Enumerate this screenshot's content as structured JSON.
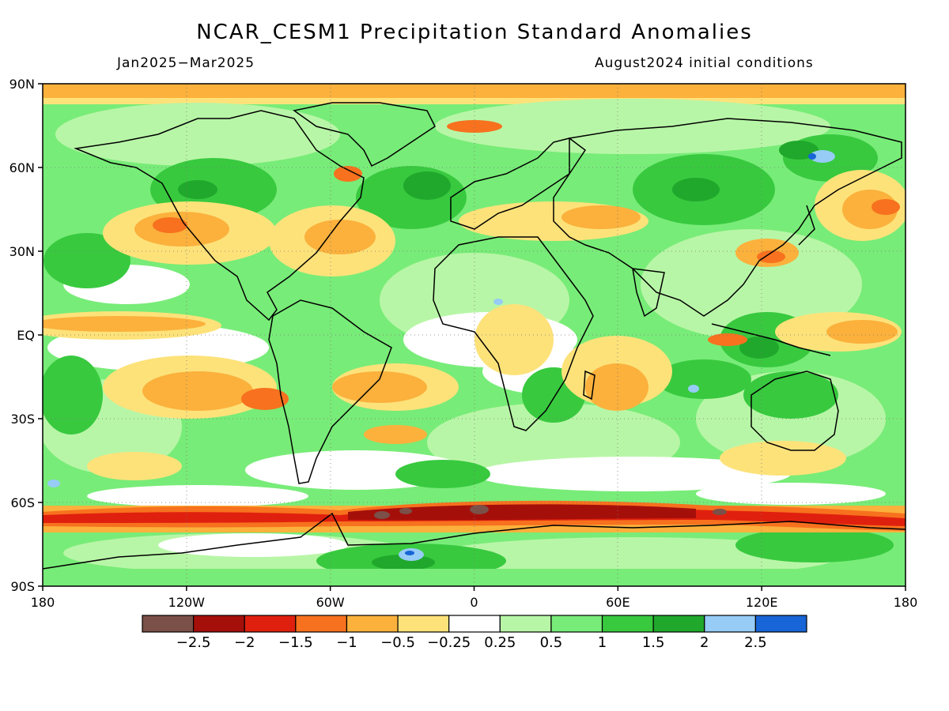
{
  "title": "NCAR_CESM1 Precipitation Standard Anomalies",
  "subtitle_left": "Jan2025−Mar2025",
  "subtitle_right": "August2024 initial conditions",
  "axes": {
    "lat_ticks": [
      "90N",
      "60N",
      "30N",
      "EQ",
      "30S",
      "60S",
      "90S"
    ],
    "lon_ticks": [
      "180",
      "120W",
      "60W",
      "0",
      "60E",
      "120E",
      "180"
    ]
  },
  "colorbar": {
    "colors": [
      "#7a5048",
      "#a50f0a",
      "#e0200e",
      "#f7711e",
      "#fbb13c",
      "#fde27a",
      "#ffffff",
      "#b8f6a7",
      "#78ec78",
      "#38c93f",
      "#20a82c",
      "#96ccf6",
      "#1765d6"
    ],
    "labels": [
      "−2.5",
      "−2",
      "−1.5",
      "−1",
      "−0.5",
      "−0.25",
      "0.25",
      "0.5",
      "1",
      "1.5",
      "2",
      "2.5"
    ]
  }
}
